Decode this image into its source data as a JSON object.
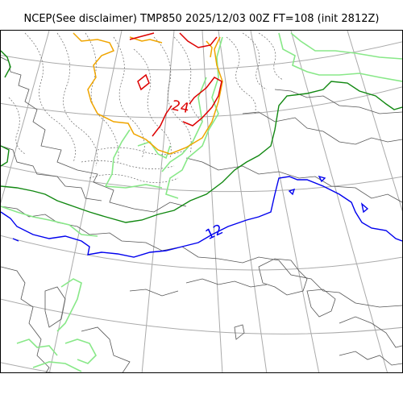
{
  "title": "NCEP(See disclaimer) TMP850 2025/12/03 00Z FT=108 (init 2812Z)",
  "contour_labels": [
    {
      "text": "24",
      "color": "#dd0000"
    },
    {
      "text": "12",
      "color": "#0000ee"
    }
  ],
  "colors": {
    "coastline": "#555555",
    "graticule": "#aaaaaa",
    "dotted": "#666666",
    "red_isotherm": "#dd0000",
    "orange_isotherm": "#f0a500",
    "green_isotherm": "#118811",
    "lightgreen_isotherm": "#88e888",
    "blue_isotherm": "#0000ee"
  }
}
